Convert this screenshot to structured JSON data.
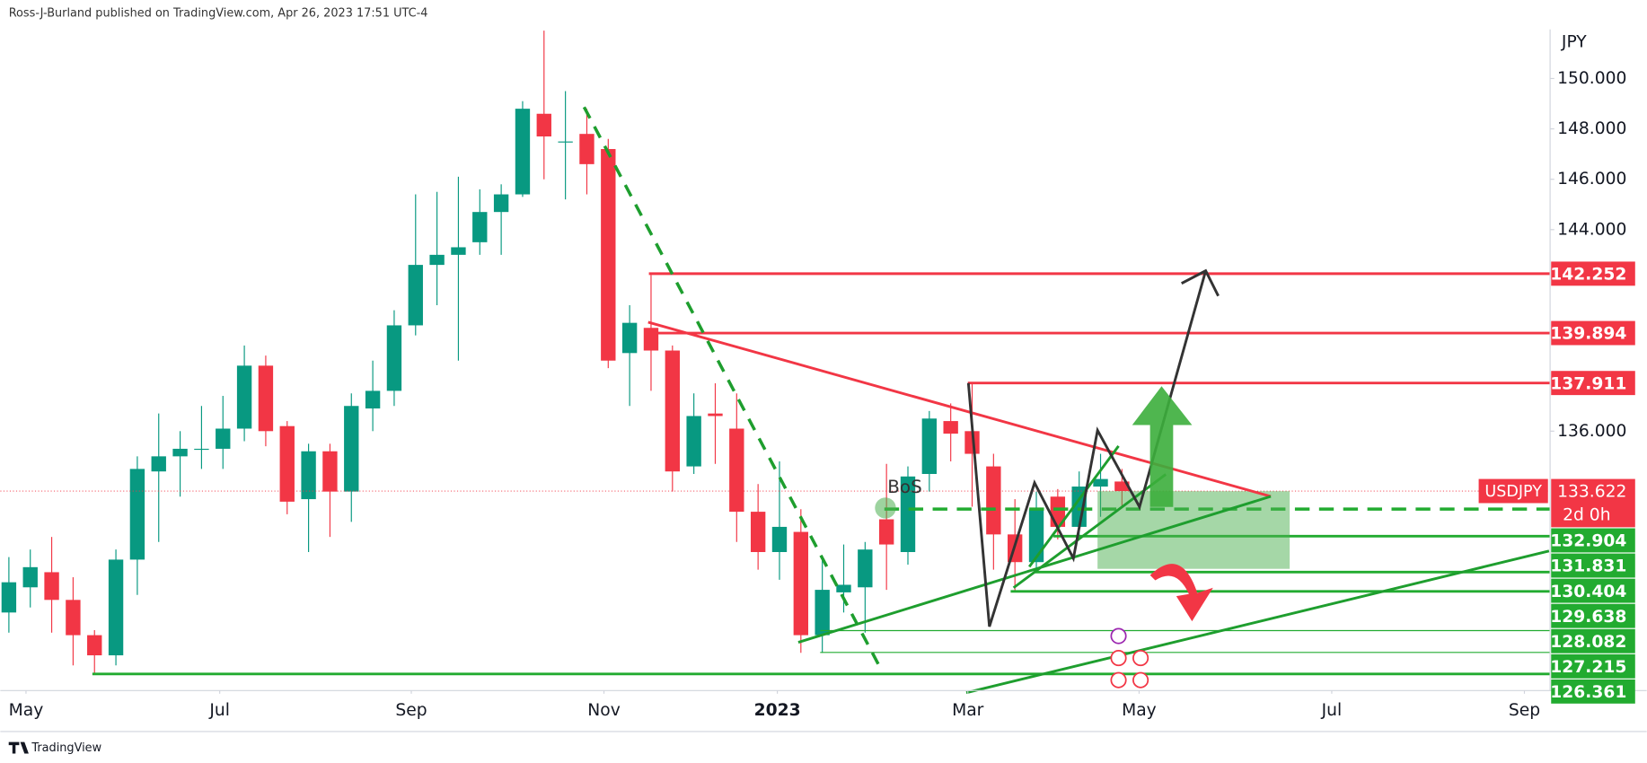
{
  "chart_data": {
    "type": "candlestick",
    "header": "Ross-J-Burland published on TradingView.com, Apr 26, 2023 17:51 UTC-4",
    "y_unit": "JPY",
    "annotation": "BoS",
    "footer": "TradingView",
    "symbol": "USDJPY",
    "last_price": 133.622,
    "countdown": "2d 0h",
    "up_color": "#089981",
    "down_color": "#f23645",
    "xlim": [
      -0.4,
      72.0
    ],
    "xticks": [
      {
        "value": 0.8,
        "label": "May"
      },
      {
        "value": 9.85,
        "label": "Jul"
      },
      {
        "value": 18.8,
        "label": "Sep"
      },
      {
        "value": 27.8,
        "label": "Nov"
      },
      {
        "value": 35.9,
        "label": "2023"
      },
      {
        "value": 44.8,
        "label": "Mar"
      },
      {
        "value": 52.8,
        "label": "May"
      },
      {
        "value": 61.8,
        "label": "Jul"
      },
      {
        "value": 70.8,
        "label": "Sep"
      }
    ],
    "ylim": [
      125.7,
      151.95
    ],
    "yticks": [
      {
        "value": 136,
        "label": "136.000"
      },
      {
        "value": 144,
        "label": "144.000"
      },
      {
        "value": 146,
        "label": "146.000"
      },
      {
        "value": 148,
        "label": "148.000"
      },
      {
        "value": 150,
        "label": "150.000"
      }
    ],
    "open": [
      128.8,
      129.8,
      130.4,
      129.3,
      127.9,
      127.1,
      130.9,
      134.4,
      135.0,
      135.3,
      135.3,
      136.1,
      138.6,
      136.2,
      133.3,
      135.2,
      133.6,
      136.9,
      137.6,
      140.2,
      142.6,
      143.0,
      143.5,
      144.7,
      145.4,
      148.6,
      147.5,
      147.8,
      147.2,
      139.1,
      140.1,
      139.2,
      134.6,
      136.7,
      136.1,
      132.8,
      131.2,
      132.0,
      127.9,
      129.6,
      129.8,
      132.5,
      131.2,
      134.3,
      136.4,
      136.0,
      134.6,
      131.9,
      130.8,
      133.4,
      132.2,
      133.8,
      134.0
    ],
    "high": [
      131.0,
      131.3,
      131.8,
      130.2,
      128.1,
      131.3,
      135.0,
      136.7,
      136.0,
      137.0,
      137.4,
      139.4,
      139.0,
      136.4,
      135.5,
      135.5,
      137.5,
      138.8,
      140.8,
      145.4,
      145.5,
      146.1,
      145.6,
      145.8,
      149.1,
      151.9,
      149.5,
      148.8,
      147.6,
      141.0,
      142.2,
      139.4,
      137.5,
      137.9,
      137.5,
      133.9,
      134.8,
      132.9,
      131.0,
      131.5,
      131.6,
      134.7,
      134.6,
      136.8,
      137.1,
      137.9,
      135.1,
      133.3,
      133.6,
      133.7,
      134.4,
      135.1,
      134.5
    ],
    "low": [
      128.0,
      129.0,
      128.0,
      126.7,
      126.4,
      126.7,
      129.5,
      131.6,
      133.4,
      134.5,
      134.5,
      135.6,
      135.4,
      132.7,
      131.2,
      131.8,
      132.4,
      136.0,
      137.0,
      139.8,
      141.0,
      138.8,
      143.0,
      143.0,
      145.3,
      146.0,
      145.2,
      145.4,
      138.5,
      137.0,
      137.6,
      133.6,
      134.3,
      134.7,
      131.6,
      130.5,
      130.1,
      127.2,
      127.2,
      128.8,
      128.0,
      129.7,
      130.7,
      133.6,
      134.8,
      133.0,
      130.5,
      129.6,
      130.5,
      131.7,
      131.8,
      132.6,
      133.0
    ],
    "close": [
      130.0,
      130.6,
      129.3,
      127.9,
      127.1,
      130.9,
      134.5,
      135.0,
      135.3,
      135.3,
      136.1,
      138.6,
      136.0,
      133.2,
      135.2,
      133.6,
      137.0,
      137.6,
      140.2,
      142.6,
      143.0,
      143.3,
      144.7,
      145.4,
      148.8,
      147.7,
      147.5,
      146.6,
      138.8,
      140.3,
      139.2,
      134.4,
      136.6,
      136.6,
      132.8,
      131.2,
      132.2,
      127.9,
      129.7,
      129.9,
      131.3,
      131.5,
      134.2,
      136.5,
      135.9,
      135.1,
      131.9,
      130.8,
      132.9,
      132.2,
      133.8,
      134.1,
      133.622
    ],
    "levels": [
      {
        "value": 142.252,
        "color": "#f23645"
      },
      {
        "value": 139.894,
        "color": "#f23645"
      },
      {
        "value": 137.911,
        "color": "#f23645"
      },
      {
        "value": 132.904,
        "color": "#22ab30"
      },
      {
        "value": 131.831,
        "color": "#22ab30"
      },
      {
        "value": 130.404,
        "color": "#22ab30"
      },
      {
        "value": 129.638,
        "color": "#22ab30"
      },
      {
        "value": 128.082,
        "color": "#22ab30"
      },
      {
        "value": 127.215,
        "color": "#22ab30"
      },
      {
        "value": 126.361,
        "color": "#22ab30"
      }
    ]
  }
}
